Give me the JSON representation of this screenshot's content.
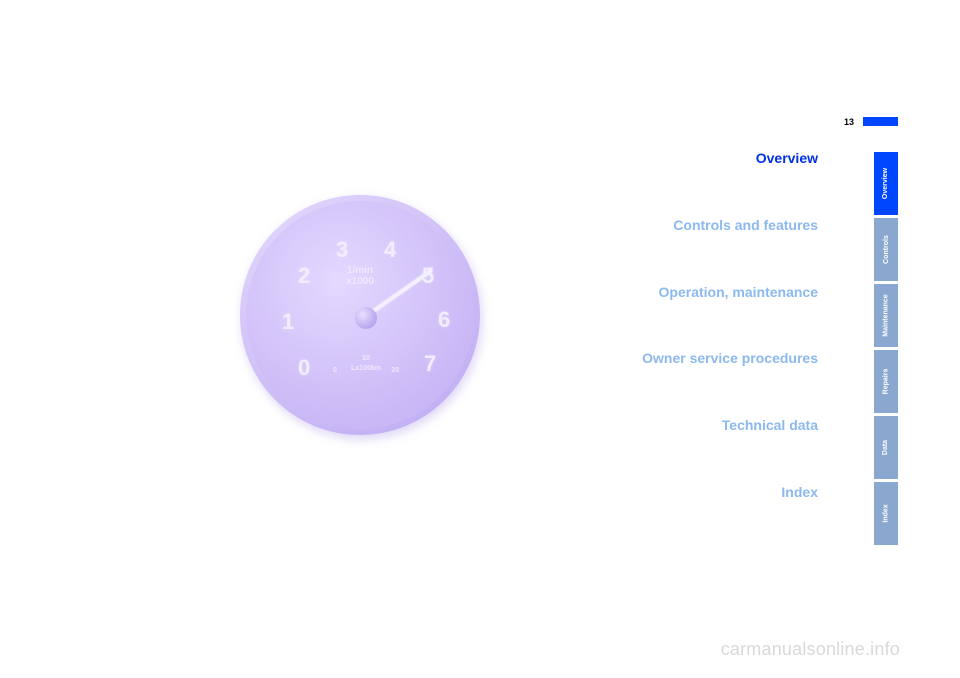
{
  "page_number": "13",
  "marker_color": "#0046ff",
  "gauge": {
    "dial": [
      "0",
      "1",
      "2",
      "3",
      "4",
      "5",
      "6",
      "7"
    ],
    "unit_line1": "1/min",
    "unit_line2": "x1000",
    "sub_left": "0",
    "sub_mid": "10",
    "sub_right": "20",
    "sub_unit": "Lx100km",
    "needle_angle_deg": -35
  },
  "sections": [
    {
      "label": "Overview",
      "active": true
    },
    {
      "label": "Controls and features",
      "active": false
    },
    {
      "label": "Operation, maintenance",
      "active": false
    },
    {
      "label": "Owner service procedures",
      "active": false
    },
    {
      "label": "Technical data",
      "active": false
    },
    {
      "label": "Index",
      "active": false
    }
  ],
  "tabs": [
    {
      "label": "Overview",
      "active": true
    },
    {
      "label": "Controls",
      "active": false
    },
    {
      "label": "Maintenance",
      "active": false
    },
    {
      "label": "Repairs",
      "active": false
    },
    {
      "label": "Data",
      "active": false
    },
    {
      "label": "Index",
      "active": false
    }
  ],
  "colors": {
    "section_active": "#0030e8",
    "section_inactive": "#8cb9ef",
    "tab_active_bg": "#0046ff",
    "tab_inactive_bg": "#8aa8cf"
  },
  "watermark": "carmanualsonline.info"
}
